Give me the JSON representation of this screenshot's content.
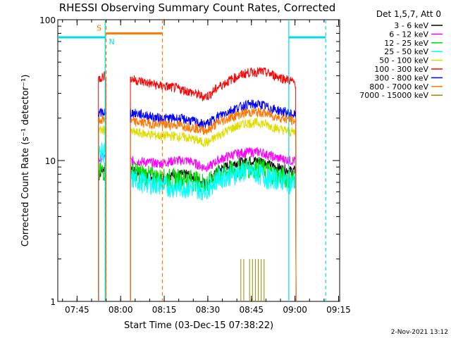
{
  "chart_data": {
    "type": "line",
    "title": "RHESSI Observing Summary Count Rates, Corrected",
    "xlabel": "Start Time (03-Dec-15 07:38:22)",
    "ylabel": "Corrected Count Rate (s⁻¹ detector⁻¹)",
    "yscale": "log",
    "ylim": [
      1,
      100
    ],
    "xlim_minutes_since_0738_22": [
      0,
      97
    ],
    "x_ticks": [
      {
        "label": "07:45",
        "minute": 6.63
      },
      {
        "label": "08:00",
        "minute": 21.63
      },
      {
        "label": "08:15",
        "minute": 36.63
      },
      {
        "label": "08:30",
        "minute": 51.63
      },
      {
        "label": "08:45",
        "minute": 66.63
      },
      {
        "label": "09:00",
        "minute": 81.63
      },
      {
        "label": "09:15",
        "minute": 96.63
      }
    ],
    "y_ticks": [
      "1",
      "10",
      "100"
    ],
    "legend_title": "Det 1,5,7, Att 0",
    "legend_position": "right, outside plot",
    "timestamp": "2-Nov-2021 13:12",
    "series": [
      {
        "name": "3 - 6 keV",
        "color": "#000000",
        "x": [
          14,
          15,
          16,
          25,
          30,
          35,
          40,
          45,
          50,
          52,
          55,
          60,
          65,
          70,
          72,
          75,
          80,
          82
        ],
        "values": [
          7.5,
          8.5,
          8.8,
          8.5,
          8.0,
          7.5,
          8.0,
          8.0,
          7.0,
          7.0,
          8.5,
          9.5,
          10.0,
          10.0,
          9.5,
          9.0,
          8.5,
          8.5
        ]
      },
      {
        "name": "6 - 12 keV",
        "color": "#ff00ff",
        "x": [
          14,
          15,
          16,
          25,
          30,
          35,
          40,
          45,
          50,
          52,
          55,
          60,
          65,
          70,
          72,
          75,
          80,
          82
        ],
        "values": [
          10.0,
          10.5,
          10.5,
          10.0,
          9.8,
          9.5,
          10.0,
          10.0,
          9.0,
          9.0,
          10.0,
          11.0,
          11.5,
          11.5,
          11.0,
          10.5,
          10.0,
          10.0
        ]
      },
      {
        "name": "12 - 25 keV",
        "color": "#00dd00",
        "x": [
          14,
          15,
          16,
          25,
          30,
          35,
          40,
          45,
          50,
          52,
          55,
          60,
          65,
          70,
          72,
          75,
          80,
          82
        ],
        "values": [
          8.0,
          8.5,
          8.5,
          8.5,
          8.0,
          7.5,
          7.5,
          7.5,
          7.0,
          7.0,
          8.0,
          8.5,
          9.0,
          9.0,
          8.5,
          8.0,
          7.5,
          7.5
        ]
      },
      {
        "name": "25 - 50 keV",
        "color": "#00ffff",
        "x": [
          14,
          15,
          16,
          25,
          30,
          35,
          40,
          45,
          50,
          52,
          55,
          60,
          65,
          70,
          72,
          75,
          80,
          82
        ],
        "values": [
          11.0,
          11.5,
          11.5,
          7.5,
          7.0,
          6.8,
          6.5,
          6.5,
          6.3,
          6.5,
          7.5,
          8.0,
          8.5,
          8.0,
          7.5,
          7.5,
          7.0,
          7.0
        ]
      },
      {
        "name": "50 - 100 keV",
        "color": "#dddd00",
        "x": [
          14,
          15,
          16,
          25,
          30,
          35,
          40,
          45,
          50,
          52,
          55,
          60,
          65,
          70,
          72,
          75,
          80,
          82
        ],
        "values": [
          16.0,
          16.5,
          16.5,
          16.0,
          15.5,
          15.0,
          15.0,
          14.5,
          13.5,
          13.5,
          15.0,
          17.0,
          18.5,
          18.5,
          18.0,
          17.0,
          16.0,
          16.0
        ]
      },
      {
        "name": "100 - 300 keV",
        "color": "#ff0000",
        "x": [
          14,
          15,
          16,
          25,
          30,
          35,
          40,
          45,
          50,
          52,
          55,
          60,
          65,
          70,
          72,
          75,
          80,
          82
        ],
        "values": [
          38.0,
          39.0,
          40.0,
          38.0,
          36.0,
          34.0,
          33.0,
          31.0,
          28.5,
          29.0,
          33.0,
          38.0,
          42.0,
          43.0,
          42.0,
          40.0,
          37.0,
          35.0
        ]
      },
      {
        "name": "300 - 800 keV",
        "color": "#0000ff",
        "x": [
          14,
          15,
          16,
          25,
          30,
          35,
          40,
          45,
          50,
          52,
          55,
          60,
          65,
          70,
          72,
          75,
          80,
          82
        ],
        "values": [
          21.0,
          22.0,
          22.0,
          22.0,
          21.0,
          20.0,
          20.0,
          19.5,
          18.0,
          18.5,
          20.5,
          23.0,
          25.0,
          25.0,
          24.0,
          23.0,
          21.5,
          21.0
        ]
      },
      {
        "name": "800 - 7000 keV",
        "color": "#ff7700",
        "x": [
          14,
          15,
          16,
          25,
          30,
          35,
          40,
          45,
          50,
          52,
          55,
          60,
          65,
          70,
          72,
          75,
          80,
          82
        ],
        "values": [
          19.0,
          19.5,
          19.5,
          19.0,
          18.5,
          18.0,
          18.0,
          17.5,
          16.5,
          16.5,
          18.5,
          20.5,
          22.0,
          22.0,
          21.5,
          20.5,
          19.5,
          19.0
        ]
      },
      {
        "name": "7000 - 15000 keV",
        "color": "#998800",
        "x": [
          63,
          64,
          66,
          67,
          68,
          69,
          70,
          71
        ],
        "values": [
          2.0,
          2.0,
          2.0,
          2.0,
          2.0,
          2.0,
          2.0,
          2.0
        ]
      }
    ],
    "annotations": [
      {
        "label": "S",
        "color": "#ff7700",
        "x_start": 16.63,
        "x_end": 36.0,
        "y": 80
      },
      {
        "label": "N",
        "color": "#00dddd",
        "x_start": 0,
        "x_end": 16.63,
        "y": 75
      },
      {
        "label": "",
        "color": "#00dddd",
        "x_start": 79.5,
        "x_end": 92.2,
        "y": 75
      }
    ]
  }
}
